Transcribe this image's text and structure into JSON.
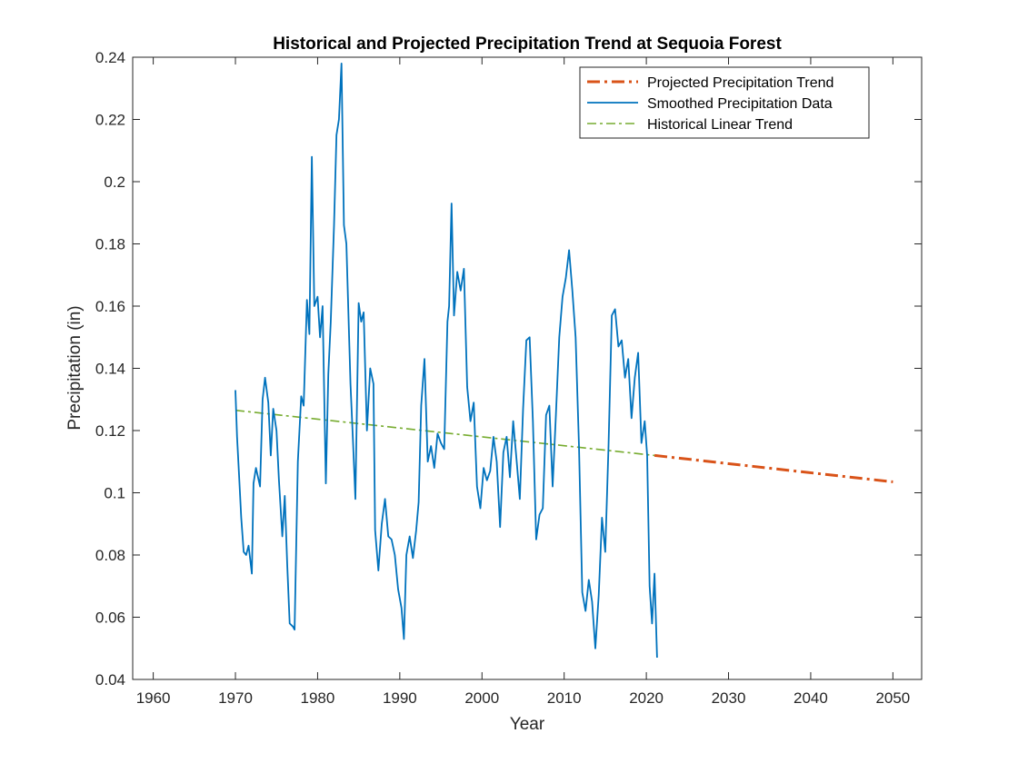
{
  "chart_data": {
    "type": "line",
    "title": "Historical and Projected Precipitation Trend at Sequoia Forest",
    "xlabel": "Year",
    "ylabel": "Precipitation (in)",
    "xlim": [
      1957.5,
      2053.5
    ],
    "ylim": [
      0.04,
      0.24
    ],
    "xticks": [
      "1960",
      "1970",
      "1980",
      "1990",
      "2000",
      "2010",
      "2020",
      "2030",
      "2040",
      "2050"
    ],
    "yticks": [
      "0.04",
      "0.06",
      "0.08",
      "0.1",
      "0.12",
      "0.14",
      "0.16",
      "0.18",
      "0.2",
      "0.22",
      "0.24"
    ],
    "grid": false,
    "legend_position": "top-right",
    "series": [
      {
        "name": "Projected Precipitation Trend",
        "color": "#D95319",
        "style": "dash-dot",
        "x": [
          2021,
          2050
        ],
        "y": [
          0.112,
          0.1035
        ]
      },
      {
        "name": "Smoothed Precipitation Data",
        "color": "#0072BD",
        "style": "solid",
        "x": [
          1970.0,
          1970.2,
          1970.4,
          1970.7,
          1971.0,
          1971.3,
          1971.6,
          1972.0,
          1972.2,
          1972.5,
          1973.0,
          1973.3,
          1973.6,
          1974.0,
          1974.3,
          1974.6,
          1975.0,
          1975.3,
          1975.7,
          1976.0,
          1976.3,
          1976.6,
          1977.0,
          1977.2,
          1977.6,
          1978.0,
          1978.3,
          1978.7,
          1979.0,
          1979.3,
          1979.6,
          1980.0,
          1980.3,
          1980.6,
          1981.0,
          1981.3,
          1981.6,
          1982.0,
          1982.3,
          1982.6,
          1982.9,
          1983.2,
          1983.5,
          1984.0,
          1984.3,
          1984.6,
          1985.0,
          1985.3,
          1985.6,
          1986.0,
          1986.4,
          1986.8,
          1987.0,
          1987.4,
          1987.8,
          1988.2,
          1988.6,
          1989.0,
          1989.4,
          1989.8,
          1990.2,
          1990.5,
          1990.8,
          1991.2,
          1991.6,
          1992.0,
          1992.3,
          1992.6,
          1993.0,
          1993.4,
          1993.8,
          1994.2,
          1994.6,
          1995.0,
          1995.4,
          1995.8,
          1996.0,
          1996.3,
          1996.6,
          1997.0,
          1997.4,
          1997.8,
          1998.2,
          1998.6,
          1999.0,
          1999.4,
          1999.8,
          2000.2,
          2000.6,
          2001.0,
          2001.4,
          2001.8,
          2002.2,
          2002.6,
          2003.0,
          2003.4,
          2003.8,
          2004.2,
          2004.6,
          2005.0,
          2005.4,
          2005.8,
          2006.2,
          2006.6,
          2007.0,
          2007.4,
          2007.8,
          2008.2,
          2008.6,
          2009.0,
          2009.4,
          2009.8,
          2010.2,
          2010.6,
          2011.0,
          2011.4,
          2011.8,
          2012.2,
          2012.6,
          2013.0,
          2013.4,
          2013.8,
          2014.2,
          2014.6,
          2015.0,
          2015.4,
          2015.8,
          2016.2,
          2016.6,
          2017.0,
          2017.4,
          2017.8,
          2018.2,
          2018.6,
          2019.0,
          2019.4,
          2019.8,
          2020.1,
          2020.4,
          2020.7,
          2021.0,
          2021.3
        ],
        "y": [
          0.133,
          0.118,
          0.108,
          0.092,
          0.081,
          0.08,
          0.083,
          0.074,
          0.103,
          0.108,
          0.102,
          0.13,
          0.137,
          0.129,
          0.112,
          0.127,
          0.12,
          0.104,
          0.086,
          0.099,
          0.077,
          0.058,
          0.057,
          0.056,
          0.11,
          0.131,
          0.128,
          0.162,
          0.151,
          0.208,
          0.16,
          0.163,
          0.15,
          0.16,
          0.103,
          0.138,
          0.155,
          0.186,
          0.215,
          0.22,
          0.238,
          0.186,
          0.18,
          0.135,
          0.117,
          0.098,
          0.161,
          0.155,
          0.158,
          0.12,
          0.14,
          0.135,
          0.088,
          0.075,
          0.09,
          0.098,
          0.086,
          0.085,
          0.08,
          0.069,
          0.063,
          0.053,
          0.08,
          0.086,
          0.079,
          0.088,
          0.097,
          0.128,
          0.143,
          0.11,
          0.115,
          0.108,
          0.119,
          0.116,
          0.114,
          0.155,
          0.16,
          0.193,
          0.157,
          0.171,
          0.165,
          0.172,
          0.134,
          0.123,
          0.129,
          0.102,
          0.095,
          0.108,
          0.104,
          0.107,
          0.118,
          0.11,
          0.089,
          0.113,
          0.118,
          0.105,
          0.123,
          0.111,
          0.098,
          0.127,
          0.149,
          0.15,
          0.123,
          0.085,
          0.093,
          0.095,
          0.125,
          0.128,
          0.102,
          0.125,
          0.15,
          0.163,
          0.169,
          0.178,
          0.165,
          0.15,
          0.115,
          0.068,
          0.062,
          0.072,
          0.065,
          0.05,
          0.067,
          0.092,
          0.081,
          0.115,
          0.157,
          0.159,
          0.147,
          0.149,
          0.137,
          0.143,
          0.124,
          0.137,
          0.145,
          0.116,
          0.123,
          0.112,
          0.07,
          0.058,
          0.074,
          0.047
        ]
      },
      {
        "name": "Historical Linear Trend",
        "color": "#77AC30",
        "style": "dash-dot",
        "x": [
          1970,
          2021
        ],
        "y": [
          0.1265,
          0.112
        ]
      }
    ]
  }
}
